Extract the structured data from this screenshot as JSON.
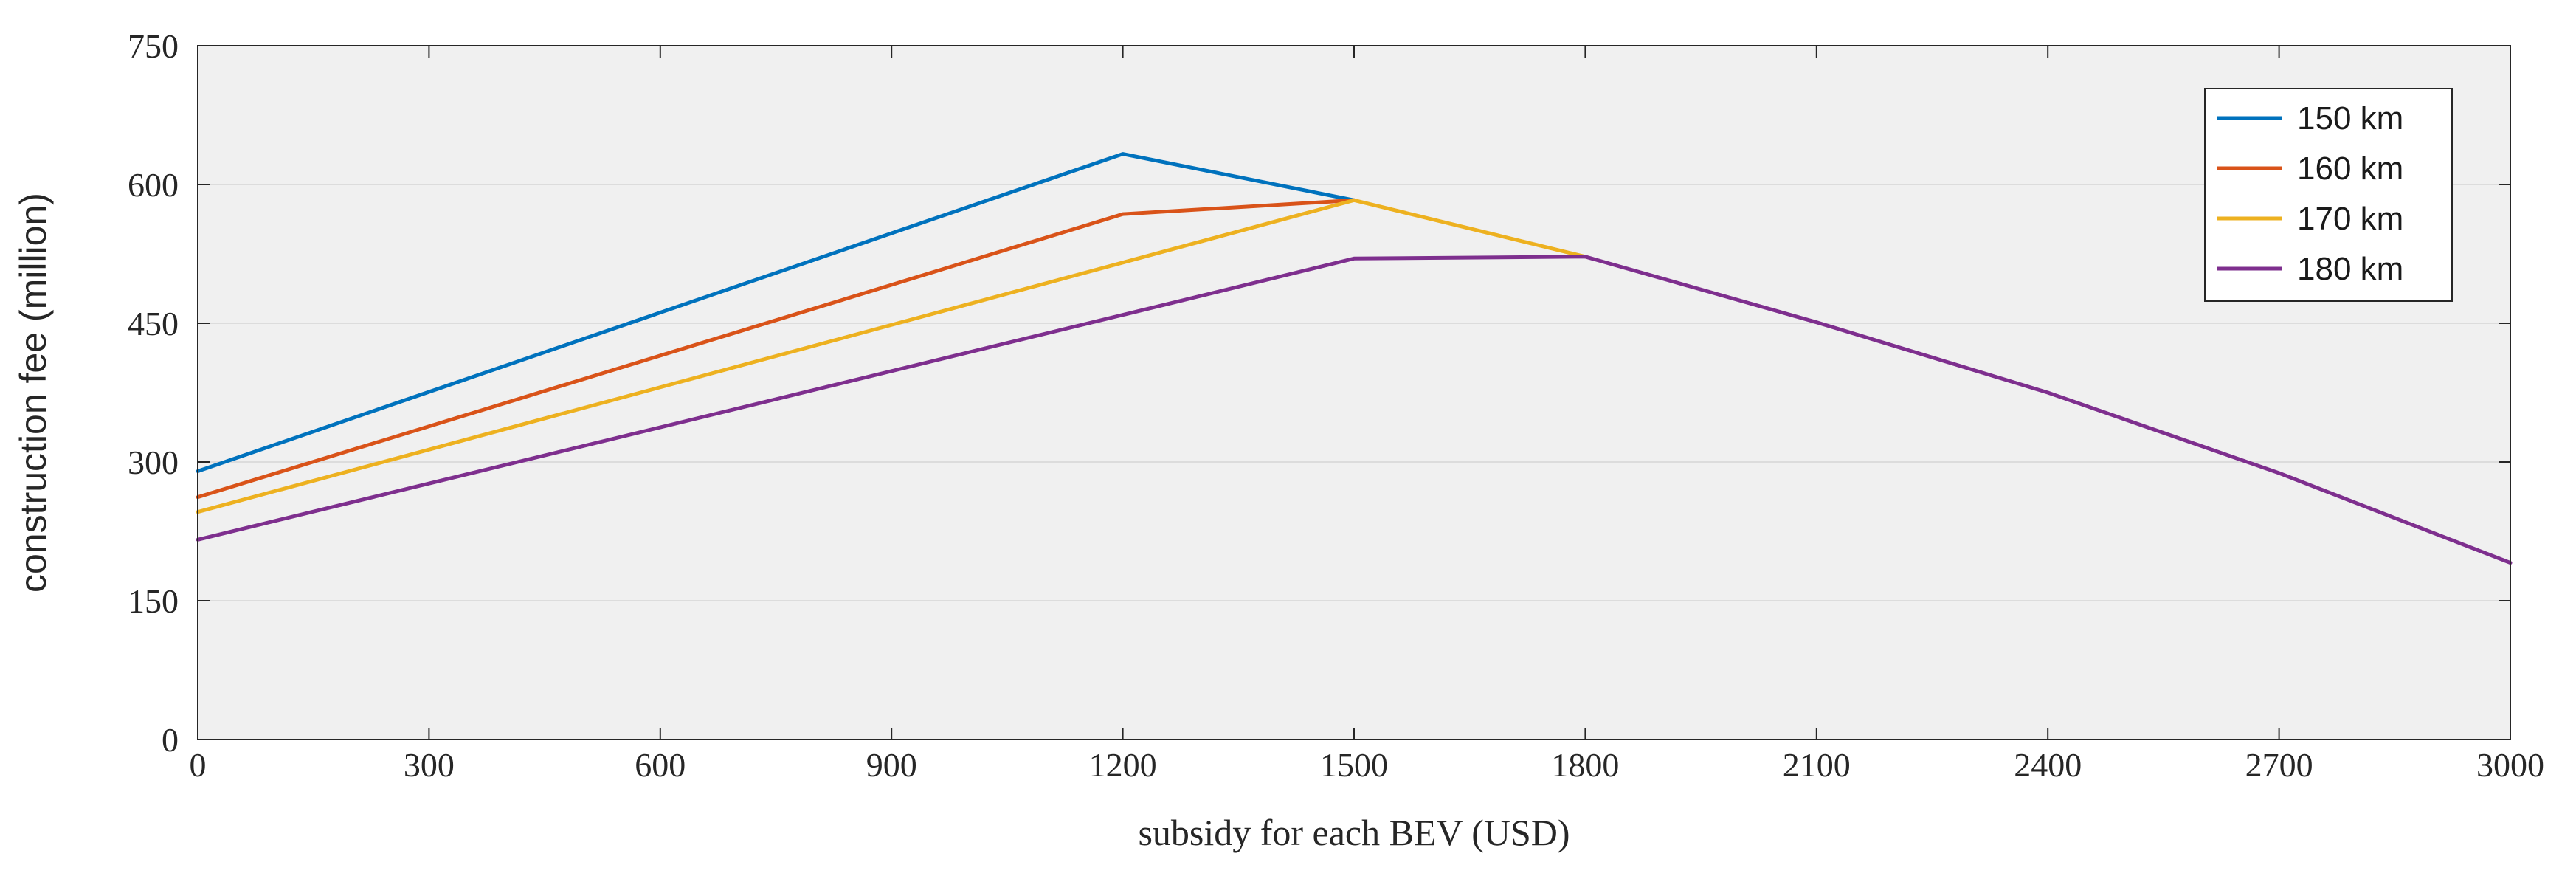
{
  "chart_data": {
    "type": "line",
    "title": "",
    "xlabel": "subsidy for each BEV (USD)",
    "ylabel": "construction fee (million)",
    "xlim": [
      0,
      3000
    ],
    "ylim": [
      0,
      750
    ],
    "xticks": [
      0,
      300,
      600,
      900,
      1200,
      1500,
      1800,
      2100,
      2400,
      2700,
      3000
    ],
    "yticks": [
      0,
      150,
      300,
      450,
      600,
      750
    ],
    "grid": true,
    "legend_position": "top-right",
    "series": [
      {
        "name": "150 km",
        "color": "#0072BD",
        "x": [
          0,
          1200,
          1500
        ],
        "y": [
          290,
          633,
          583
        ]
      },
      {
        "name": "160 km",
        "color": "#D95319",
        "x": [
          0,
          1200,
          1500
        ],
        "y": [
          262,
          568,
          583
        ]
      },
      {
        "name": "170 km",
        "color": "#EDB120",
        "x": [
          0,
          1500,
          1800
        ],
        "y": [
          246,
          583,
          522
        ]
      },
      {
        "name": "180 km",
        "color": "#7E2F8E",
        "x": [
          0,
          1200,
          1500,
          1800,
          2100,
          2400,
          2700,
          3000
        ],
        "y": [
          216,
          459,
          520,
          522,
          451,
          375,
          288,
          191
        ]
      }
    ]
  }
}
